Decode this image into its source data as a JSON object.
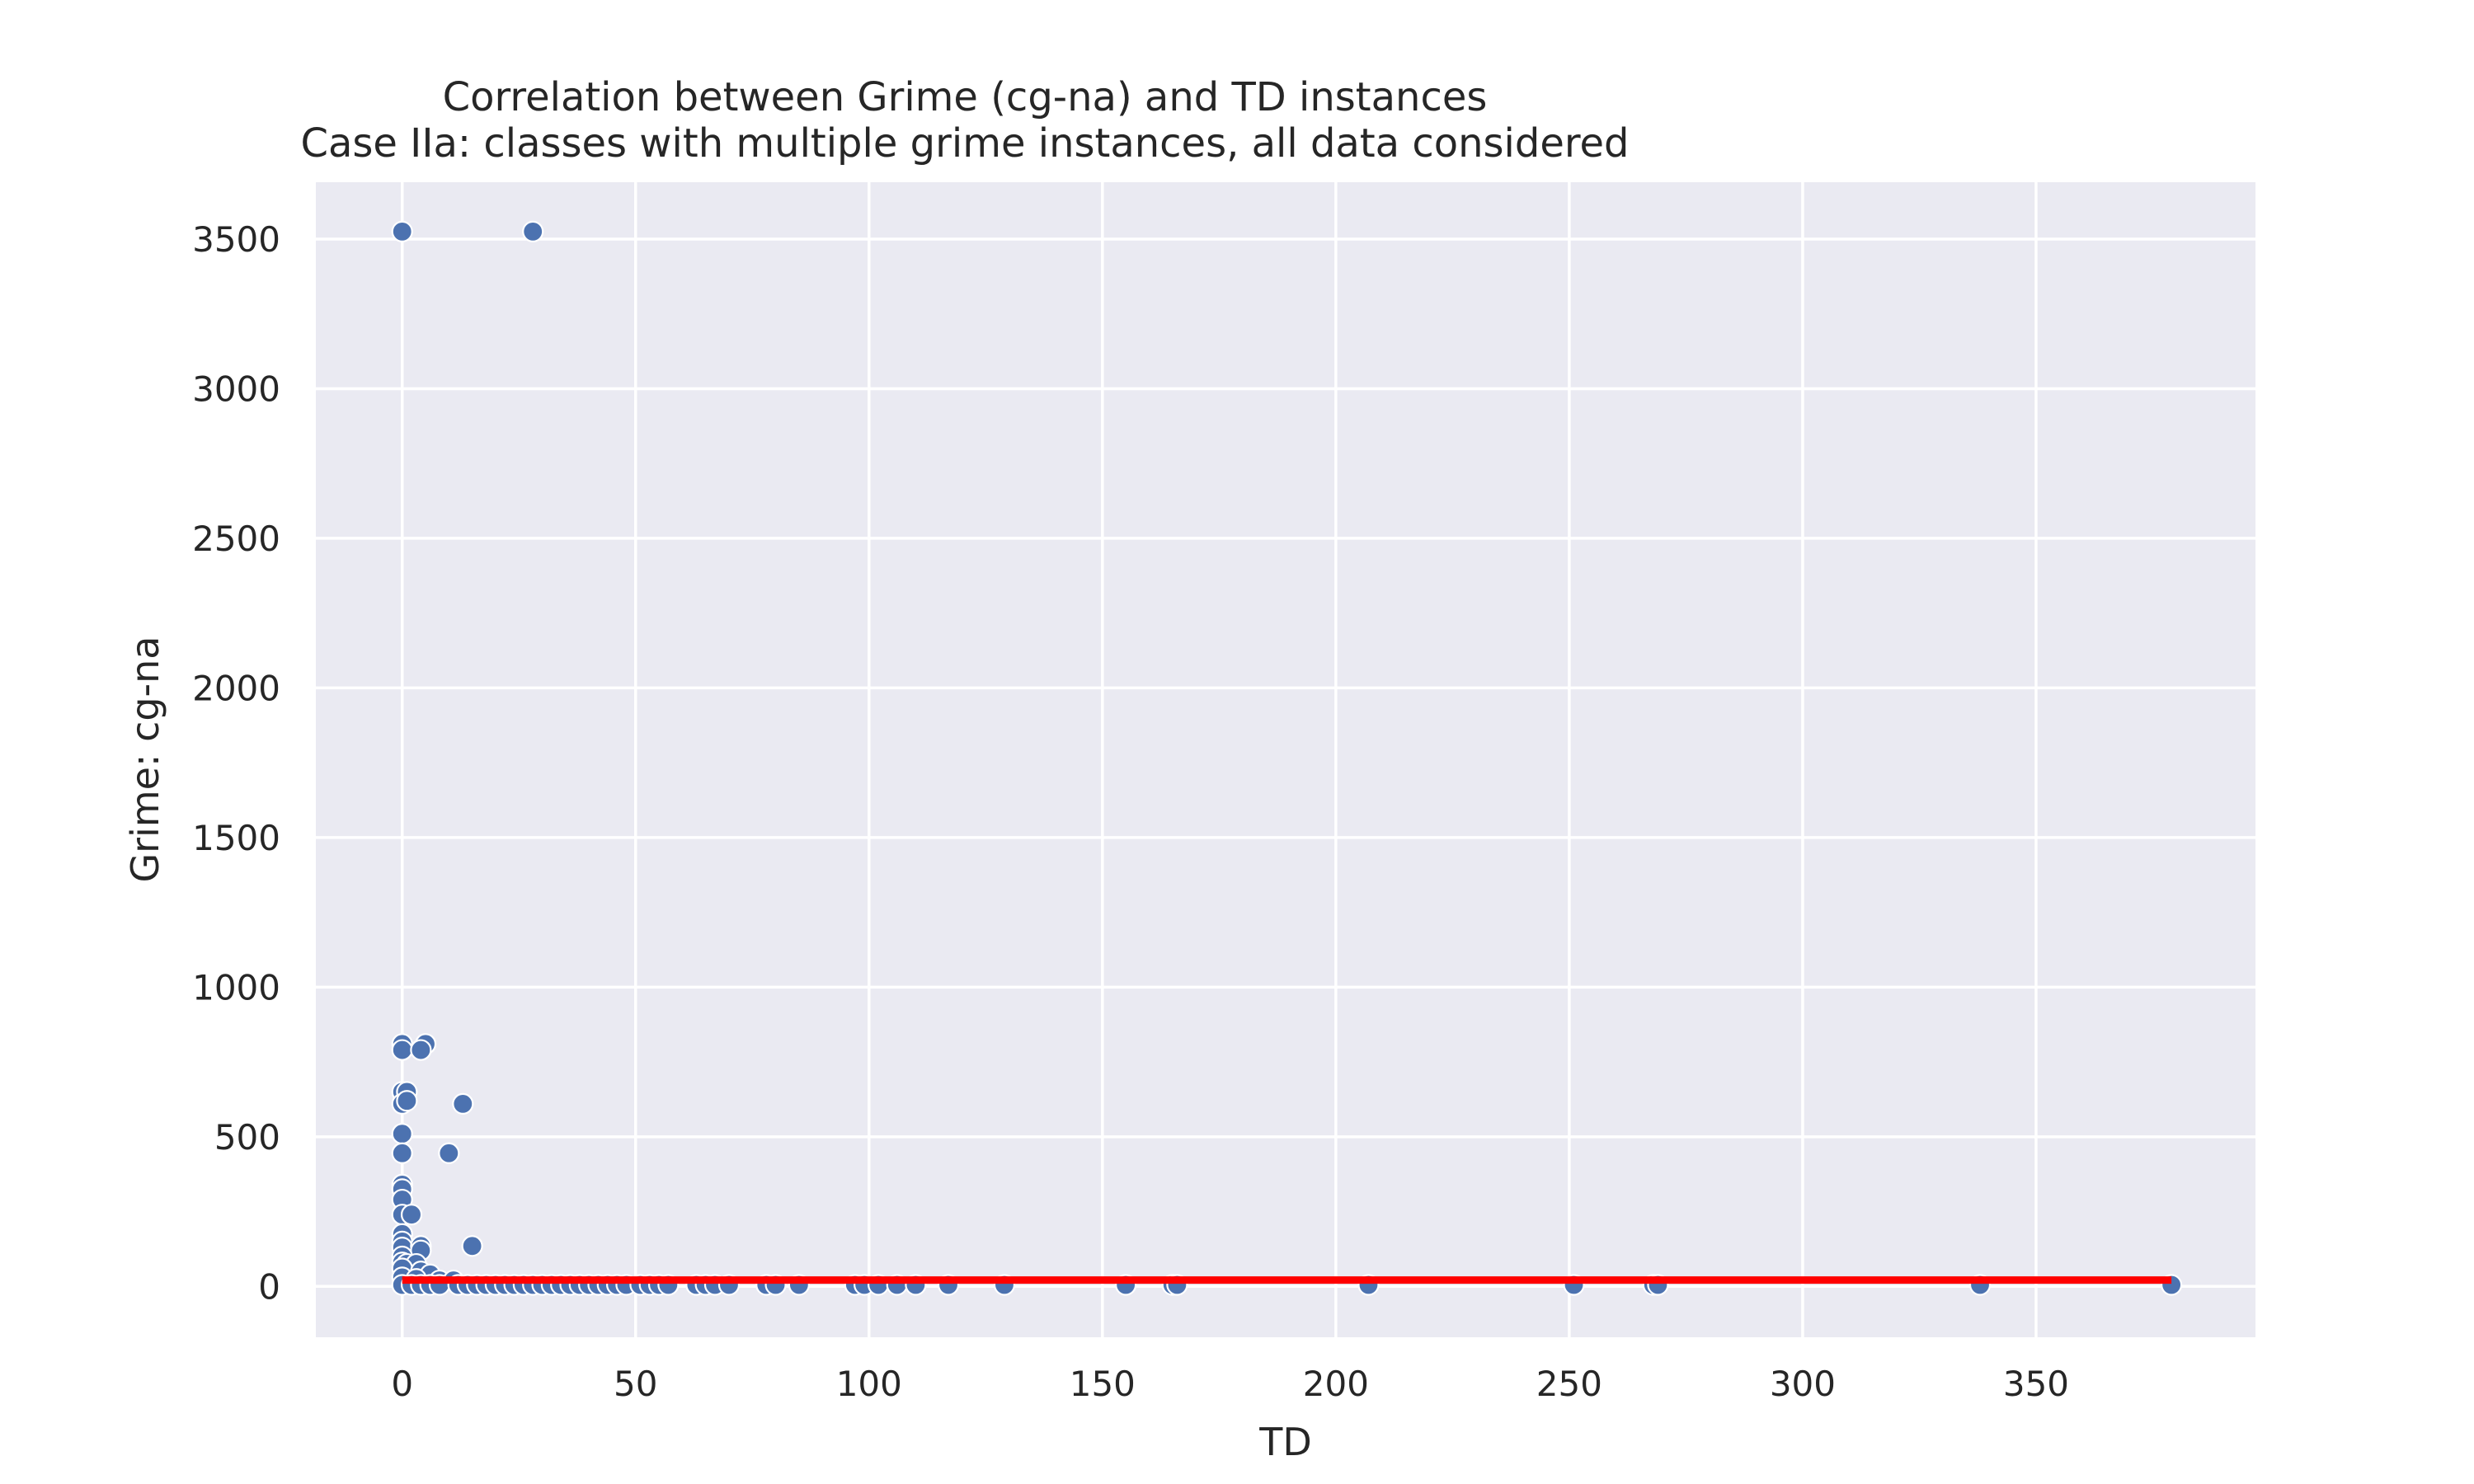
{
  "chart_data": {
    "type": "scatter",
    "title": "Correlation between Grime (cg-na) and TD instances",
    "subtitle": "Case IIa: classes with multiple grime instances, all data considered",
    "xlabel": "TD",
    "ylabel": "Grime: cg-na",
    "xlim": [
      -18.5,
      397
    ],
    "ylim": [
      -170,
      3690
    ],
    "x_ticks": [
      0,
      50,
      100,
      150,
      200,
      250,
      300,
      350
    ],
    "y_ticks": [
      0,
      500,
      1000,
      1500,
      2000,
      2500,
      3000,
      3500
    ],
    "grid": true,
    "series": [
      {
        "color": "#4c72b0",
        "points": [
          [
            0,
            3525
          ],
          [
            28,
            3525
          ],
          [
            0,
            810
          ],
          [
            0,
            790
          ],
          [
            5,
            810
          ],
          [
            4,
            790
          ],
          [
            0,
            650
          ],
          [
            1,
            650
          ],
          [
            0,
            610
          ],
          [
            1,
            620
          ],
          [
            13,
            610
          ],
          [
            0,
            510
          ],
          [
            0,
            445
          ],
          [
            10,
            445
          ],
          [
            0,
            340
          ],
          [
            0,
            325
          ],
          [
            0,
            290
          ],
          [
            0,
            240
          ],
          [
            2,
            240
          ],
          [
            0,
            175
          ],
          [
            0,
            150
          ],
          [
            0,
            130
          ],
          [
            4,
            135
          ],
          [
            15,
            135
          ],
          [
            4,
            120
          ],
          [
            0,
            100
          ],
          [
            0,
            80
          ],
          [
            1,
            75
          ],
          [
            3,
            75
          ],
          [
            0,
            60
          ],
          [
            4,
            50
          ],
          [
            6,
            40
          ],
          [
            0,
            30
          ],
          [
            3,
            25
          ],
          [
            8,
            20
          ],
          [
            11,
            20
          ],
          [
            0,
            5
          ],
          [
            2,
            5
          ],
          [
            4,
            5
          ],
          [
            6,
            5
          ],
          [
            8,
            5
          ],
          [
            12,
            5
          ],
          [
            14,
            5
          ],
          [
            16,
            5
          ],
          [
            18,
            5
          ],
          [
            20,
            5
          ],
          [
            22,
            5
          ],
          [
            24,
            5
          ],
          [
            26,
            5
          ],
          [
            28,
            5
          ],
          [
            30,
            5
          ],
          [
            32,
            5
          ],
          [
            34,
            5
          ],
          [
            36,
            5
          ],
          [
            38,
            5
          ],
          [
            40,
            5
          ],
          [
            42,
            5
          ],
          [
            44,
            5
          ],
          [
            46,
            5
          ],
          [
            48,
            5
          ],
          [
            51,
            5
          ],
          [
            53,
            5
          ],
          [
            55,
            5
          ],
          [
            57,
            5
          ],
          [
            63,
            5
          ],
          [
            65,
            5
          ],
          [
            67,
            5
          ],
          [
            70,
            5
          ],
          [
            78,
            5
          ],
          [
            80,
            5
          ],
          [
            85,
            5
          ],
          [
            97,
            5
          ],
          [
            99,
            5
          ],
          [
            102,
            5
          ],
          [
            106,
            5
          ],
          [
            110,
            5
          ],
          [
            117,
            5
          ],
          [
            129,
            5
          ],
          [
            155,
            5
          ],
          [
            165,
            5
          ],
          [
            166,
            5
          ],
          [
            207,
            5
          ],
          [
            251,
            5
          ],
          [
            268,
            5
          ],
          [
            269,
            5
          ],
          [
            338,
            5
          ],
          [
            379,
            5
          ]
        ]
      }
    ],
    "regression": {
      "color": "#ff0000",
      "x": [
        0,
        379
      ],
      "y": [
        21,
        21
      ]
    }
  }
}
